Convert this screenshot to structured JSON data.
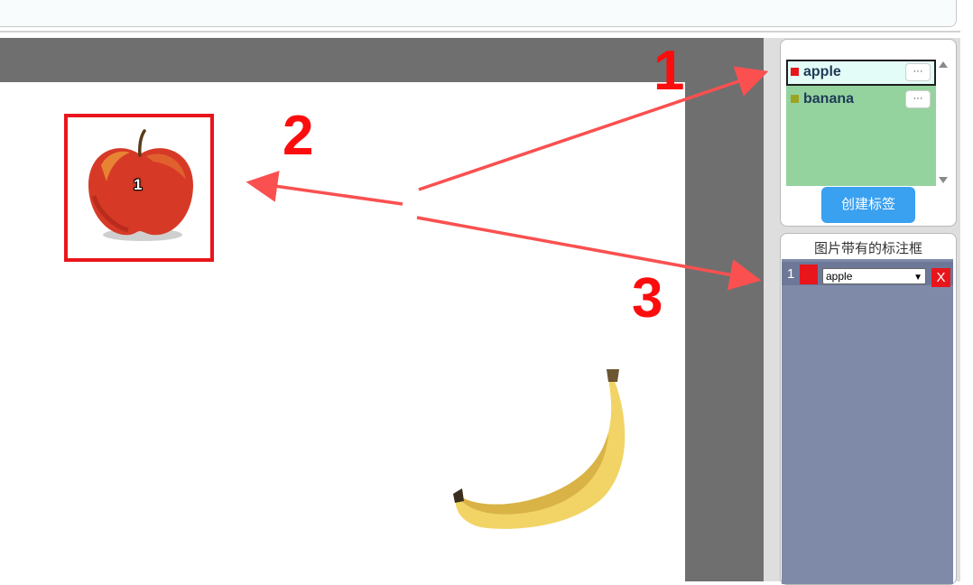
{
  "labels_panel": {
    "labels": [
      {
        "name": "apple",
        "color": "#e8161c",
        "more": "···"
      },
      {
        "name": "banana",
        "color": "#9ea221",
        "more": "···"
      }
    ],
    "create_button": "创建标签"
  },
  "bboxes_panel": {
    "title": "图片带有的标注框",
    "rows": [
      {
        "index": "1",
        "color": "#e8161c",
        "label": "apple",
        "delete": "X"
      }
    ]
  },
  "canvas": {
    "boxes": [
      {
        "number": "1",
        "color": "#e8161c"
      }
    ]
  },
  "annotations": {
    "callout_1": "1",
    "callout_2": "2",
    "callout_3": "3",
    "color": "#fc0d0d"
  }
}
